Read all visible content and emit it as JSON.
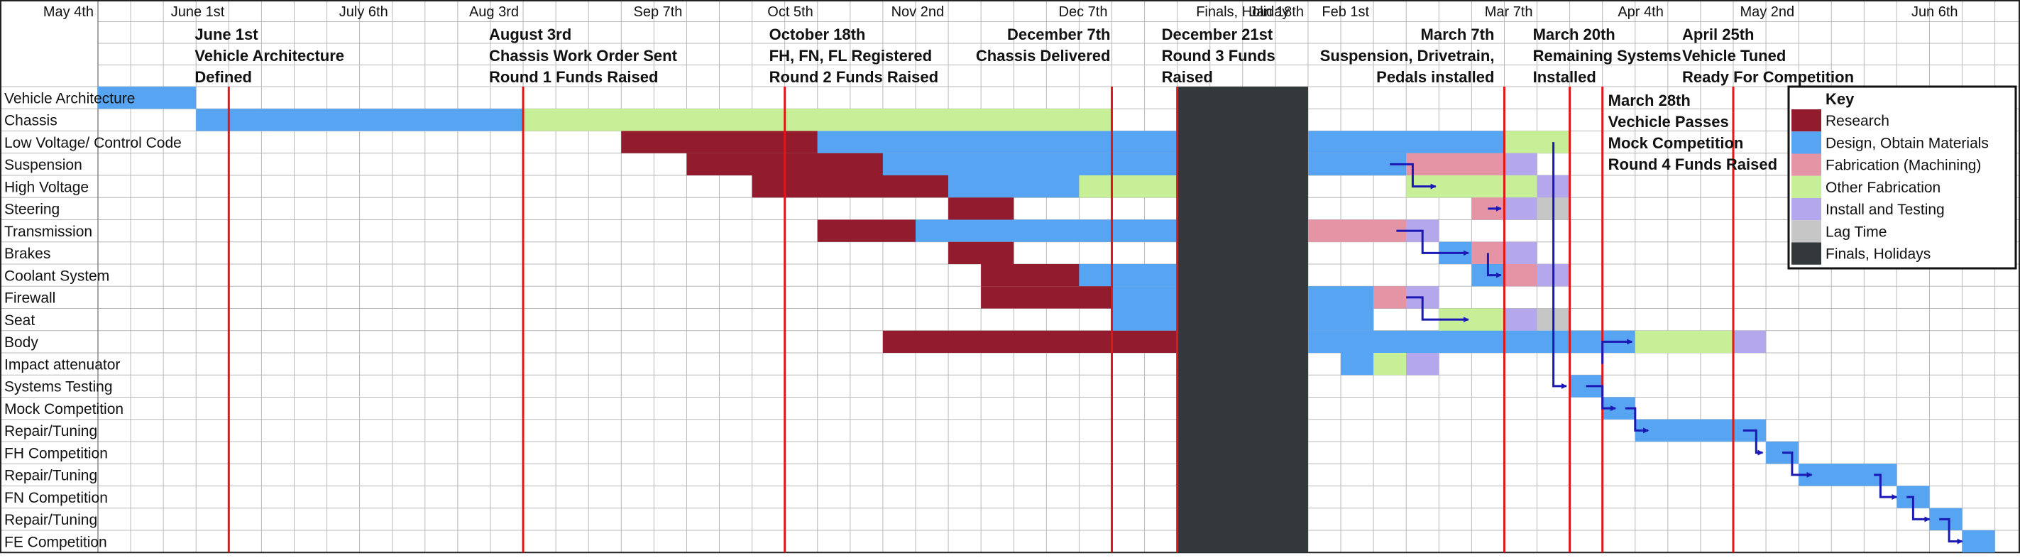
{
  "chart_data": {
    "type": "gantt",
    "date_labels": [
      {
        "label": "May 4th",
        "week": 0
      },
      {
        "label": "June 1st",
        "week": 4
      },
      {
        "label": "July 6th",
        "week": 9
      },
      {
        "label": "Aug 3rd",
        "week": 13
      },
      {
        "label": "Sep 7th",
        "week": 18
      },
      {
        "label": "Oct 5th",
        "week": 22
      },
      {
        "label": "Nov 2nd",
        "week": 26
      },
      {
        "label": "Dec 7th",
        "week": 31
      },
      {
        "label": "Jan 18th",
        "week": 37
      },
      {
        "label": "Feb 1st",
        "week": 39
      },
      {
        "label": "Mar 7th",
        "week": 44
      },
      {
        "label": "Apr 4th",
        "week": 48
      },
      {
        "label": "May 2nd",
        "week": 52
      },
      {
        "label": "Jun 6th",
        "week": 57
      }
    ],
    "tasks": [
      "Vehicle Architecture",
      "Chassis",
      "Low Voltage/ Control Code",
      "Suspension",
      "High Voltage",
      "Steering",
      "Transmission",
      "Brakes",
      "Coolant System",
      "Firewall",
      "Seat",
      "Body",
      "Impact attenuator",
      "Systems Testing",
      "Mock Competition",
      "Repair/Tuning",
      "FH Competition",
      "Repair/Tuning",
      "FN Competition",
      "Repair/Tuning",
      "FE Competition"
    ],
    "bars": [
      {
        "row": 0,
        "start": 0,
        "end": 3,
        "cat": "design"
      },
      {
        "row": 1,
        "start": 3,
        "end": 13,
        "cat": "design"
      },
      {
        "row": 1,
        "start": 13,
        "end": 31,
        "cat": "other"
      },
      {
        "row": 2,
        "start": 16,
        "end": 22,
        "cat": "research"
      },
      {
        "row": 2,
        "start": 22,
        "end": 33,
        "cat": "design"
      },
      {
        "row": 2,
        "start": 37,
        "end": 43,
        "cat": "design"
      },
      {
        "row": 2,
        "start": 43,
        "end": 45,
        "cat": "other"
      },
      {
        "row": 3,
        "start": 18,
        "end": 24,
        "cat": "research"
      },
      {
        "row": 3,
        "start": 24,
        "end": 33,
        "cat": "design"
      },
      {
        "row": 3,
        "start": 37,
        "end": 40,
        "cat": "design"
      },
      {
        "row": 3,
        "start": 40,
        "end": 43,
        "cat": "fab"
      },
      {
        "row": 3,
        "start": 43,
        "end": 44,
        "cat": "install"
      },
      {
        "row": 4,
        "start": 20,
        "end": 26,
        "cat": "research"
      },
      {
        "row": 4,
        "start": 26,
        "end": 30,
        "cat": "design"
      },
      {
        "row": 4,
        "start": 30,
        "end": 33,
        "cat": "other"
      },
      {
        "row": 4,
        "start": 40,
        "end": 44,
        "cat": "other"
      },
      {
        "row": 4,
        "start": 44,
        "end": 45,
        "cat": "install"
      },
      {
        "row": 5,
        "start": 26,
        "end": 28,
        "cat": "research"
      },
      {
        "row": 5,
        "start": 42,
        "end": 43,
        "cat": "fab"
      },
      {
        "row": 5,
        "start": 43,
        "end": 44,
        "cat": "install"
      },
      {
        "row": 5,
        "start": 44,
        "end": 45,
        "cat": "lag"
      },
      {
        "row": 6,
        "start": 22,
        "end": 25,
        "cat": "research"
      },
      {
        "row": 6,
        "start": 25,
        "end": 33,
        "cat": "design"
      },
      {
        "row": 6,
        "start": 37,
        "end": 40,
        "cat": "fab"
      },
      {
        "row": 6,
        "start": 40,
        "end": 41,
        "cat": "install"
      },
      {
        "row": 7,
        "start": 26,
        "end": 28,
        "cat": "research"
      },
      {
        "row": 7,
        "start": 41,
        "end": 42,
        "cat": "design"
      },
      {
        "row": 7,
        "start": 42,
        "end": 43,
        "cat": "fab"
      },
      {
        "row": 7,
        "start": 43,
        "end": 44,
        "cat": "install"
      },
      {
        "row": 8,
        "start": 27,
        "end": 30,
        "cat": "research"
      },
      {
        "row": 8,
        "start": 30,
        "end": 33,
        "cat": "design"
      },
      {
        "row": 8,
        "start": 42,
        "end": 43,
        "cat": "design"
      },
      {
        "row": 8,
        "start": 43,
        "end": 44,
        "cat": "fab"
      },
      {
        "row": 8,
        "start": 44,
        "end": 45,
        "cat": "install"
      },
      {
        "row": 9,
        "start": 27,
        "end": 31,
        "cat": "research"
      },
      {
        "row": 9,
        "start": 31,
        "end": 33,
        "cat": "design"
      },
      {
        "row": 9,
        "start": 37,
        "end": 39,
        "cat": "design"
      },
      {
        "row": 9,
        "start": 39,
        "end": 40,
        "cat": "fab"
      },
      {
        "row": 9,
        "start": 40,
        "end": 41,
        "cat": "install"
      },
      {
        "row": 10,
        "start": 31,
        "end": 33,
        "cat": "design"
      },
      {
        "row": 10,
        "start": 37,
        "end": 39,
        "cat": "design"
      },
      {
        "row": 10,
        "start": 41,
        "end": 43,
        "cat": "other"
      },
      {
        "row": 10,
        "start": 43,
        "end": 44,
        "cat": "install"
      },
      {
        "row": 10,
        "start": 44,
        "end": 45,
        "cat": "lag"
      },
      {
        "row": 11,
        "start": 24,
        "end": 33,
        "cat": "research"
      },
      {
        "row": 11,
        "start": 37,
        "end": 47,
        "cat": "design"
      },
      {
        "row": 11,
        "start": 47,
        "end": 50,
        "cat": "other"
      },
      {
        "row": 11,
        "start": 50,
        "end": 51,
        "cat": "install"
      },
      {
        "row": 12,
        "start": 38,
        "end": 39,
        "cat": "design"
      },
      {
        "row": 12,
        "start": 39,
        "end": 40,
        "cat": "other"
      },
      {
        "row": 12,
        "start": 40,
        "end": 41,
        "cat": "install"
      },
      {
        "row": 13,
        "start": 45,
        "end": 46,
        "cat": "design"
      },
      {
        "row": 14,
        "start": 46,
        "end": 47,
        "cat": "design"
      },
      {
        "row": 15,
        "start": 47,
        "end": 51,
        "cat": "design"
      },
      {
        "row": 16,
        "start": 51,
        "end": 52,
        "cat": "design"
      },
      {
        "row": 17,
        "start": 52,
        "end": 55,
        "cat": "design"
      },
      {
        "row": 18,
        "start": 55,
        "end": 56,
        "cat": "design"
      },
      {
        "row": 19,
        "start": 56,
        "end": 57,
        "cat": "design"
      },
      {
        "row": 20,
        "start": 57,
        "end": 58,
        "cat": "design"
      }
    ],
    "finals_block": {
      "start": 33,
      "end": 37,
      "label": "Finals, Holiday"
    },
    "milestones": [
      {
        "week": 4,
        "lines": [
          "June 1st",
          "Vehicle Architecture",
          "Defined"
        ]
      },
      {
        "week": 13,
        "lines": [
          "August 3rd",
          "Chassis Work Order Sent",
          "Round 1 Funds Raised"
        ]
      },
      {
        "week": 21,
        "lines": [
          "October 18th",
          "FH, FN, FL Registered",
          "Round 2 Funds Raised"
        ]
      },
      {
        "week": 31,
        "lines": [
          "December 7th",
          "Chassis Delivered"
        ]
      },
      {
        "week": 33,
        "lines": [
          "December 21st",
          "Round 3 Funds",
          "Raised"
        ]
      },
      {
        "week": 43,
        "lines": [
          "March 7th",
          "Suspension, Drivetrain,",
          "Pedals installed"
        ]
      },
      {
        "week": 45,
        "lines": [
          "March 20th",
          "Remaining Systems",
          "Installed"
        ]
      },
      {
        "week": 46,
        "lines": [
          "March 28th",
          "Vechicle Passes",
          "Mock Competition",
          "Round 4 Funds Raised"
        ]
      },
      {
        "week": 50,
        "lines": [
          "April 25th",
          "Vehicle Tuned",
          "Ready For Competition"
        ]
      }
    ],
    "arrows": [
      [
        [
          39.5,
          3.5
        ],
        [
          40.2,
          3.5
        ],
        [
          40.2,
          4.5
        ],
        [
          40.9,
          4.5
        ]
      ],
      [
        [
          39.7,
          6.5
        ],
        [
          40.5,
          6.5
        ],
        [
          40.5,
          7.5
        ],
        [
          41.9,
          7.5
        ]
      ],
      [
        [
          42.5,
          7.5
        ],
        [
          42.5,
          8.5
        ],
        [
          42.9,
          8.5
        ]
      ],
      [
        [
          40,
          9.5
        ],
        [
          40.5,
          9.5
        ],
        [
          40.5,
          10.5
        ],
        [
          41.9,
          10.5
        ]
      ],
      [
        [
          42.5,
          5.5
        ],
        [
          42.9,
          5.5
        ]
      ],
      [
        [
          44.5,
          2.5
        ],
        [
          44.5,
          13.5
        ],
        [
          44.9,
          13.5
        ]
      ],
      [
        [
          45.5,
          13.5
        ],
        [
          46,
          13.5
        ],
        [
          46,
          14.5
        ],
        [
          46.4,
          14.5
        ]
      ],
      [
        [
          46,
          12.5
        ],
        [
          46,
          11.5
        ],
        [
          46.9,
          11.5
        ]
      ],
      [
        [
          46.7,
          14.5
        ],
        [
          47,
          14.5
        ],
        [
          47,
          15.5
        ],
        [
          47.4,
          15.5
        ]
      ],
      [
        [
          50.3,
          15.5
        ],
        [
          50.7,
          15.5
        ],
        [
          50.7,
          16.5
        ],
        [
          50.9,
          16.5
        ]
      ],
      [
        [
          51.5,
          16.5
        ],
        [
          51.8,
          16.5
        ],
        [
          51.8,
          17.5
        ],
        [
          52.4,
          17.5
        ]
      ],
      [
        [
          54.3,
          17.5
        ],
        [
          54.5,
          17.5
        ],
        [
          54.5,
          18.5
        ],
        [
          55.0,
          18.5
        ]
      ],
      [
        [
          55.3,
          18.5
        ],
        [
          55.5,
          18.5
        ],
        [
          55.5,
          19.5
        ],
        [
          56.0,
          19.5
        ]
      ],
      [
        [
          56.3,
          19.5
        ],
        [
          56.6,
          19.5
        ],
        [
          56.6,
          20.5
        ],
        [
          57.0,
          20.5
        ]
      ]
    ],
    "legend": {
      "title": "Key",
      "items": [
        {
          "cat": "research",
          "label": "Research"
        },
        {
          "cat": "design",
          "label": "Design, Obtain Materials"
        },
        {
          "cat": "fab",
          "label": "Fabrication (Machining)"
        },
        {
          "cat": "other",
          "label": "Other Fabrication"
        },
        {
          "cat": "install",
          "label": "Install and Testing"
        },
        {
          "cat": "lag",
          "label": "Lag Time"
        },
        {
          "cat": "finals",
          "label": "Finals, Holidays"
        }
      ]
    },
    "colors": {
      "research": "#931b2e",
      "design": "#57a4f2",
      "fab": "#e594a6",
      "other": "#c7ef97",
      "install": "#b4a7ec",
      "lag": "#c6c6c6",
      "finals": "#33383b",
      "milestone_line": "#e01717",
      "arrow": "#1a19b5",
      "grid": "#b8b8b8"
    }
  }
}
